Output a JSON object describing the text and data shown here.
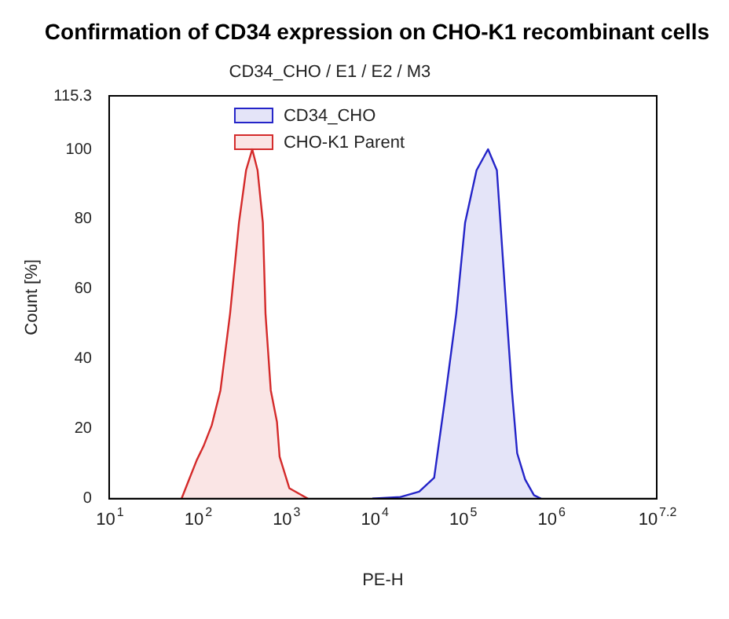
{
  "chart_data": {
    "type": "area",
    "title": "Confirmation of CD34 expression on CHO-K1 recombinant cells",
    "subtitle": "CD34_CHO / E1 / E2 / M3",
    "xlabel": "PE-H",
    "ylabel": "Count [%]",
    "log": "x",
    "xlim": [
      10,
      15848932
    ],
    "xticks": [
      {
        "value": 10,
        "label": "10$^{1}$"
      },
      {
        "value": 100,
        "label": "10$^{2}$"
      },
      {
        "value": 1000,
        "label": "10$^{3}$"
      },
      {
        "value": 10000,
        "label": "10$^{4}$"
      },
      {
        "value": 100000,
        "label": "10$^{5}$"
      },
      {
        "value": 1000000,
        "label": "10$^{6}$"
      },
      {
        "value": 15848932,
        "label": "10$^{7.2}$"
      }
    ],
    "ylim": [
      0,
      115.3
    ],
    "yticks": [
      0,
      20,
      40,
      60,
      80,
      100,
      115.3
    ],
    "grid": false,
    "legend": "top left",
    "marker": "none",
    "line_style": "solid",
    "series": [
      {
        "name": "CD34_CHO",
        "color": "#2424c8",
        "x": [
          9550,
          19950,
          32360,
          47860,
          63100,
          85110,
          107200,
          144500,
          195000,
          245500,
          316200,
          363100,
          416900,
          512900,
          645700,
          776200
        ],
        "values": [
          0,
          0.5,
          2,
          6,
          28,
          53,
          79,
          94,
          100,
          94,
          53,
          31,
          13,
          5.5,
          1,
          0
        ]
      },
      {
        "name": "CHO-K1 Parent",
        "color": "#d42a2a",
        "x": [
          66,
          79,
          98,
          117,
          145,
          182,
          234,
          295,
          355,
          417,
          479,
          550,
          589,
          676,
          794,
          851,
          1096,
          1778
        ],
        "values": [
          0,
          5,
          11,
          15,
          21,
          31,
          53,
          79,
          94,
          100,
          94,
          79,
          53,
          31,
          22,
          12,
          3,
          0
        ]
      }
    ]
  }
}
